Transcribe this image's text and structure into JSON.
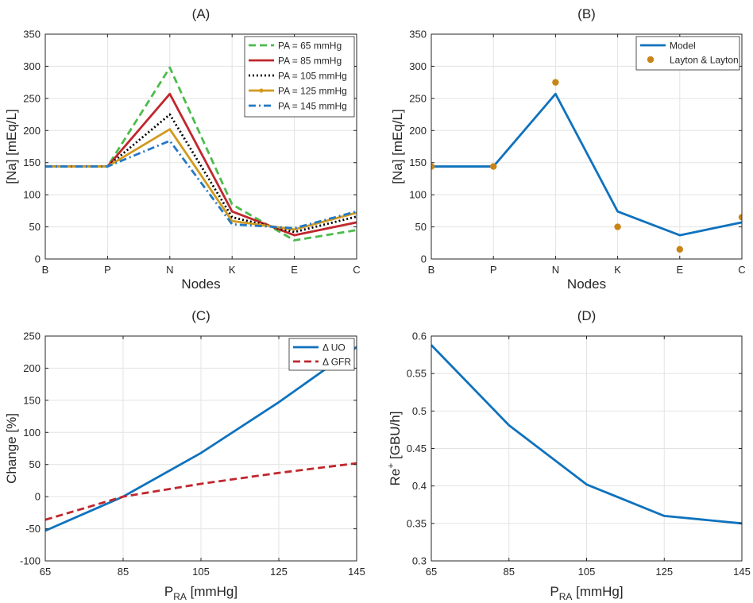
{
  "chart_data": [
    {
      "id": "A",
      "type": "line",
      "title": "(A)",
      "xlabel": "Nodes",
      "ylabel": "[Na] [mEq/L]",
      "categories": [
        "B",
        "P",
        "N",
        "K",
        "E",
        "C"
      ],
      "ylim": [
        0,
        350
      ],
      "yticks": [
        0,
        50,
        100,
        150,
        200,
        250,
        300,
        350
      ],
      "grid": true,
      "legend_position": "top-right",
      "series": [
        {
          "name": "PA = 65 mmHg",
          "values": [
            144,
            144,
            298,
            85,
            29,
            45
          ],
          "color": "#4cbb4c",
          "dash": "dash"
        },
        {
          "name": "PA = 85 mmHg",
          "values": [
            144,
            144,
            257,
            74,
            37,
            57
          ],
          "color": "#c0272d",
          "dash": "solid"
        },
        {
          "name": "PA = 105 mmHg",
          "values": [
            144,
            144,
            225,
            65,
            42,
            66
          ],
          "color": "#000000",
          "dash": "dot"
        },
        {
          "name": "PA = 125 mmHg",
          "values": [
            144,
            144,
            202,
            59,
            46,
            72
          ],
          "color": "#d19a1f",
          "dash": "solid-marker"
        },
        {
          "name": "PA = 145 mmHg",
          "values": [
            144,
            144,
            184,
            54,
            48,
            74
          ],
          "color": "#2379c4",
          "dash": "dashdot"
        }
      ]
    },
    {
      "id": "B",
      "type": "line",
      "title": "(B)",
      "xlabel": "Nodes",
      "ylabel": "[Na] [mEq/L]",
      "categories": [
        "B",
        "P",
        "N",
        "K",
        "E",
        "C"
      ],
      "ylim": [
        0,
        350
      ],
      "yticks": [
        0,
        50,
        100,
        150,
        200,
        250,
        300,
        350
      ],
      "grid": true,
      "legend_position": "top-right",
      "series": [
        {
          "name": "Model",
          "values": [
            144,
            144,
            257,
            74,
            37,
            57
          ],
          "color": "#0f72bd",
          "dash": "solid"
        },
        {
          "name": "Layton & Layton",
          "values": [
            144,
            144,
            275,
            50,
            15,
            65
          ],
          "color": "#c98417",
          "dash": "markers"
        }
      ]
    },
    {
      "id": "C",
      "type": "line",
      "title": "(C)",
      "xlabel_main": "P",
      "xlabel_sub": "RA",
      "xlabel_unit": " [mmHg]",
      "ylabel": "Change [%]",
      "x": [
        65,
        85,
        105,
        125,
        145
      ],
      "xlim": [
        65,
        145
      ],
      "xticks": [
        65,
        85,
        105,
        125,
        145
      ],
      "ylim": [
        -100,
        250
      ],
      "yticks": [
        -100,
        -50,
        0,
        50,
        100,
        150,
        200,
        250
      ],
      "grid": true,
      "legend_position": "top-right",
      "series": [
        {
          "name": "Δ UO",
          "values": [
            -53,
            0,
            68,
            147,
            233
          ],
          "color": "#0f72bd",
          "dash": "solid"
        },
        {
          "name": "Δ GFR",
          "values": [
            -36,
            0,
            20,
            37,
            52
          ],
          "color": "#c0272d",
          "dash": "dash"
        }
      ]
    },
    {
      "id": "D",
      "type": "line",
      "title": "(D)",
      "xlabel_main": "P",
      "xlabel_sub": "RA",
      "xlabel_unit": " [mmHg]",
      "ylabel_main": "Re",
      "ylabel_sup": "+",
      "ylabel_unit": " [GBU/h]",
      "x": [
        65,
        85,
        105,
        125,
        145
      ],
      "xlim": [
        65,
        145
      ],
      "xticks": [
        65,
        85,
        105,
        125,
        145
      ],
      "ylim": [
        0.3,
        0.6
      ],
      "yticks": [
        0.3,
        0.35,
        0.4,
        0.45,
        0.5,
        0.55,
        0.6
      ],
      "grid": true,
      "series": [
        {
          "name": "Re+",
          "values": [
            0.588,
            0.481,
            0.402,
            0.36,
            0.35
          ],
          "color": "#0f72bd",
          "dash": "solid"
        }
      ]
    }
  ]
}
